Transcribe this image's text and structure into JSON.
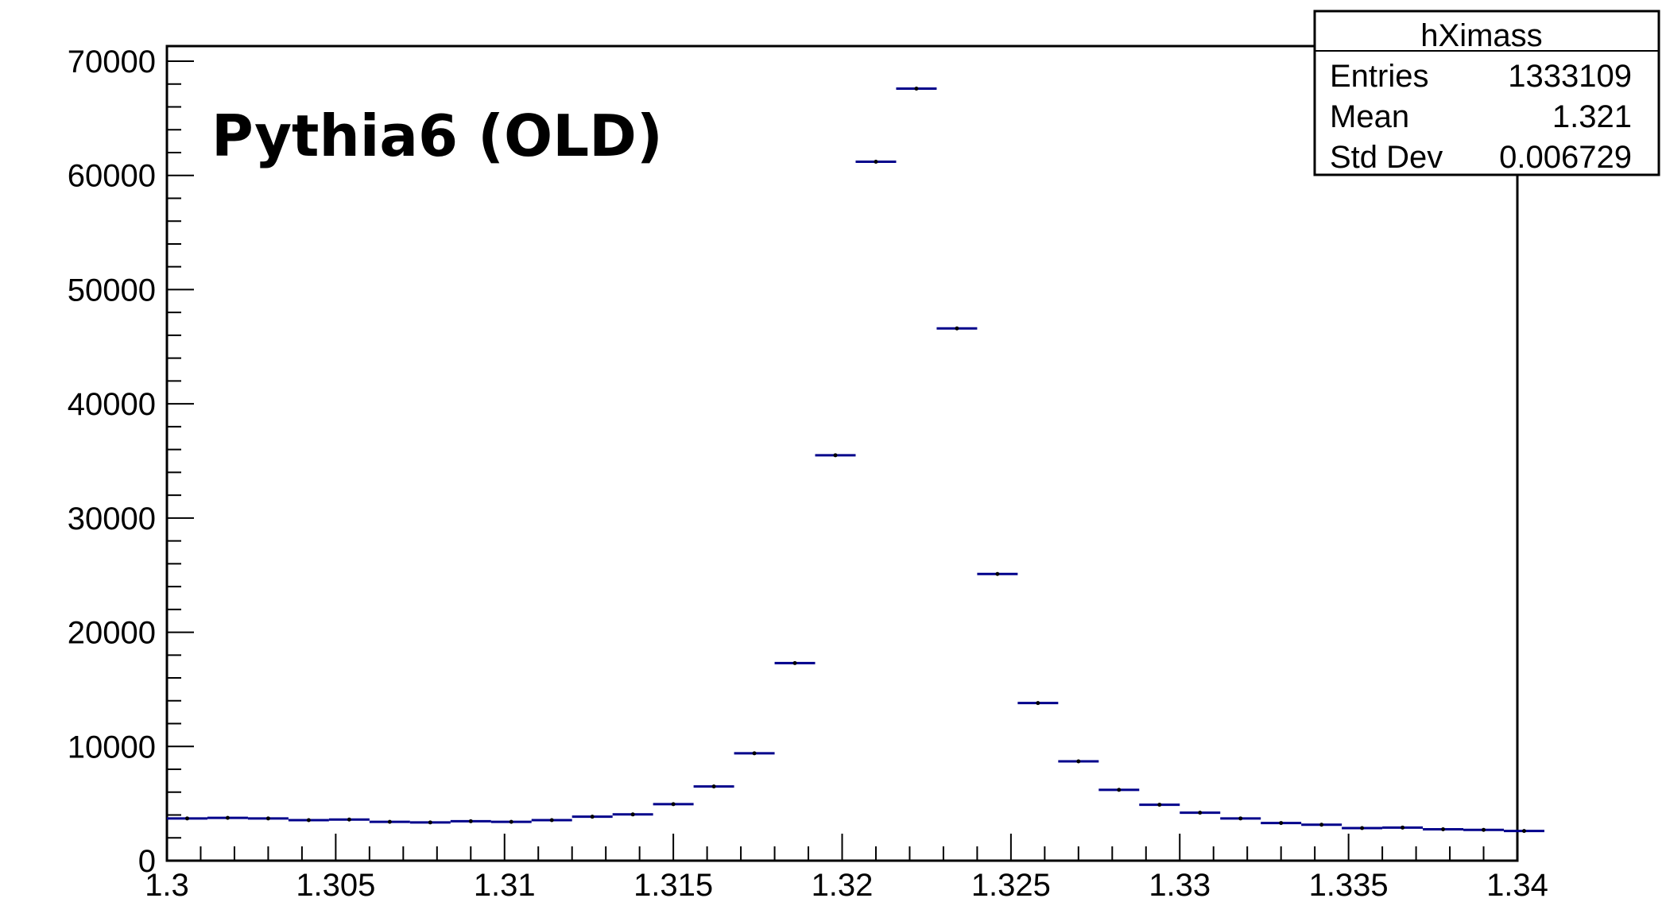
{
  "chart_data": {
    "type": "scatter",
    "title": "Pythia6 (OLD)",
    "xlabel": "",
    "ylabel": "",
    "xlim": [
      1.3,
      1.34
    ],
    "ylim": [
      0,
      70000
    ],
    "x_tick_labels": [
      "1.3",
      "1.305",
      "1.31",
      "1.315",
      "1.32",
      "1.325",
      "1.33",
      "1.335",
      "1.34"
    ],
    "y_tick_labels": [
      "0",
      "10000",
      "20000",
      "30000",
      "40000",
      "50000",
      "60000",
      "70000"
    ],
    "bin_width": 0.0012,
    "series": [
      {
        "color": "#00008b",
        "x": [
          1.3006,
          1.3018,
          1.303,
          1.3042,
          1.3054,
          1.3066,
          1.3078,
          1.309,
          1.3102,
          1.3114,
          1.3126,
          1.3138,
          1.315,
          1.3162,
          1.3174,
          1.3186,
          1.3198,
          1.321,
          1.3222,
          1.3234,
          1.3246,
          1.3258,
          1.327,
          1.3282,
          1.3294,
          1.3306,
          1.3318,
          1.333,
          1.3342,
          1.3354,
          1.3366,
          1.3378,
          1.339,
          1.3402
        ],
        "y": [
          3700,
          3750,
          3700,
          3550,
          3600,
          3400,
          3350,
          3450,
          3400,
          3550,
          3850,
          4050,
          4950,
          6500,
          9400,
          17300,
          35500,
          61200,
          67600,
          46600,
          25100,
          13800,
          8700,
          6200,
          4900,
          4200,
          3700,
          3300,
          3150,
          2850,
          2900,
          2750,
          2700,
          2600
        ]
      }
    ],
    "stats_box": {
      "name": "hXimass",
      "rows": [
        {
          "label": "Entries",
          "value": "1333109"
        },
        {
          "label": "Mean",
          "value": "1.321"
        },
        {
          "label": "Std Dev",
          "value": "0.006729"
        }
      ]
    },
    "grid": false,
    "legend": "top-right"
  }
}
